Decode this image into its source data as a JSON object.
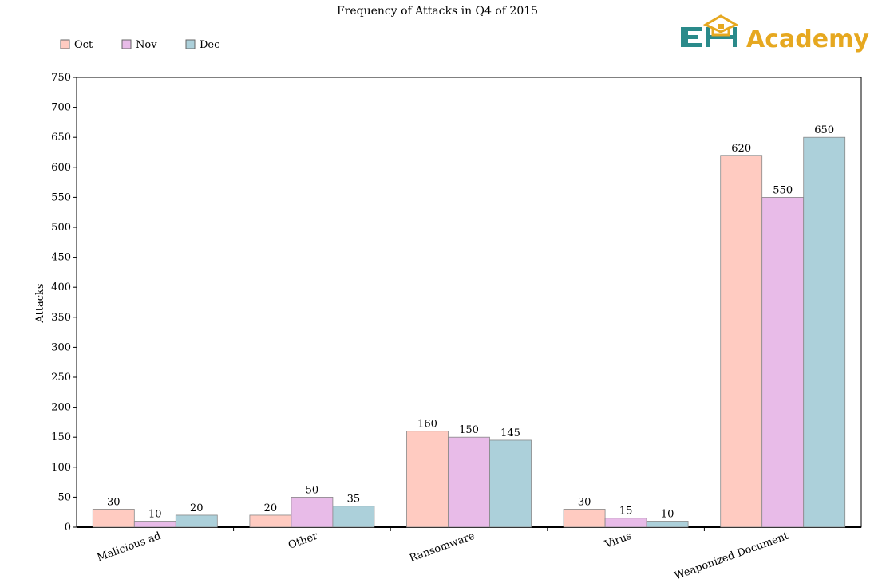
{
  "chart_data": {
    "type": "bar",
    "title": "Frequency of Attacks in Q4 of 2015",
    "xlabel": "",
    "ylabel": "Attacks",
    "ylim": [
      0,
      750
    ],
    "yticks": [
      0,
      50,
      100,
      150,
      200,
      250,
      300,
      350,
      400,
      450,
      500,
      550,
      600,
      650,
      700,
      750
    ],
    "categories": [
      "Malicious ad",
      "Other",
      "Ransomware",
      "Virus",
      "Weaponized Document"
    ],
    "series": [
      {
        "name": "Oct",
        "color": "#ffcbc1",
        "values": [
          30,
          20,
          160,
          30,
          620
        ]
      },
      {
        "name": "Nov",
        "color": "#e8bbe8",
        "values": [
          10,
          50,
          150,
          15,
          550
        ]
      },
      {
        "name": "Dec",
        "color": "#acd0da",
        "values": [
          20,
          35,
          145,
          10,
          650
        ]
      }
    ],
    "grid": false,
    "legend_position": "top-left"
  },
  "logo": {
    "text": "Academy",
    "mark": "EH",
    "mark_color": "#2a8a8a",
    "text_color": "#e6a820",
    "icon": "graduation-cap-icon"
  }
}
